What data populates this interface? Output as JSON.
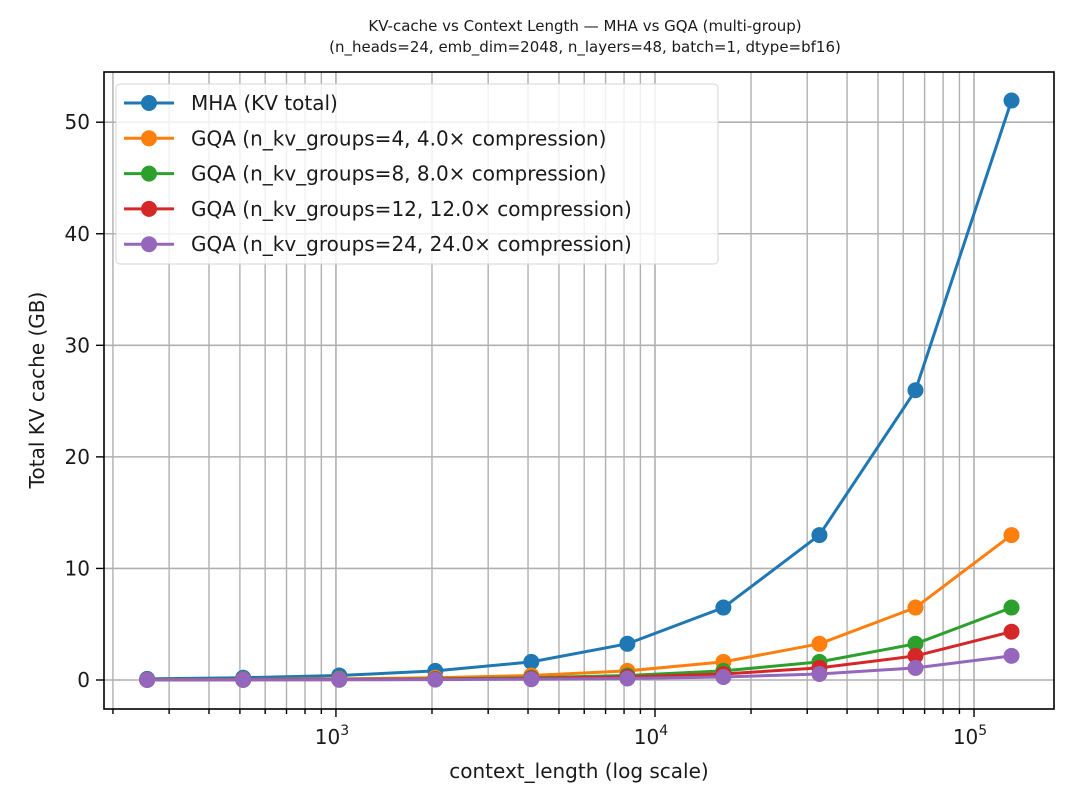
{
  "chart_data": {
    "type": "line",
    "title": "KV-cache vs Context Length — MHA vs GQA (multi-group)",
    "subtitle": "(n_heads=24, emb_dim=2048, n_layers=48, batch=1, dtype=bf16)",
    "xlabel": "context_length (log scale)",
    "ylabel": "Total KV cache (GB)",
    "xscale": "log",
    "xlim": [
      187.5,
      178100
    ],
    "ylim": [
      -2.6,
      54.5
    ],
    "grid": "both-major-and-minor",
    "legend_position": "upper-left",
    "x_tick_labels": [
      {
        "value": 1000,
        "base": "10",
        "exp": "3"
      },
      {
        "value": 10000,
        "base": "10",
        "exp": "4"
      },
      {
        "value": 100000,
        "base": "10",
        "exp": "5"
      }
    ],
    "y_ticks": [
      0,
      10,
      20,
      30,
      40,
      50
    ],
    "y_tick_labels": [
      "0",
      "10",
      "20",
      "30",
      "40",
      "50"
    ],
    "x": [
      256,
      512,
      1024,
      2048,
      4096,
      8192,
      16384,
      32768,
      65536,
      131072
    ],
    "series": [
      {
        "name": "MHA (KV total)",
        "color": "#1f77b4",
        "values": [
          0.101,
          0.203,
          0.406,
          0.812,
          1.623,
          3.246,
          6.493,
          12.99,
          25.97,
          51.94
        ]
      },
      {
        "name": "GQA (n_kv_groups=4, 4.0× compression)",
        "color": "#ff7f0e",
        "values": [
          0.025,
          0.051,
          0.101,
          0.203,
          0.406,
          0.812,
          1.623,
          3.246,
          6.493,
          12.99
        ]
      },
      {
        "name": "GQA (n_kv_groups=8, 8.0× compression)",
        "color": "#2ca02c",
        "values": [
          0.013,
          0.025,
          0.051,
          0.101,
          0.203,
          0.406,
          0.812,
          1.623,
          3.246,
          6.493
        ]
      },
      {
        "name": "GQA (n_kv_groups=12, 12.0× compression)",
        "color": "#d62728",
        "values": [
          0.008,
          0.017,
          0.034,
          0.068,
          0.135,
          0.271,
          0.541,
          1.082,
          2.164,
          4.328
        ]
      },
      {
        "name": "GQA (n_kv_groups=24, 24.0× compression)",
        "color": "#9467bd",
        "values": [
          0.004,
          0.008,
          0.017,
          0.034,
          0.068,
          0.135,
          0.271,
          0.541,
          1.082,
          2.164
        ]
      }
    ]
  }
}
